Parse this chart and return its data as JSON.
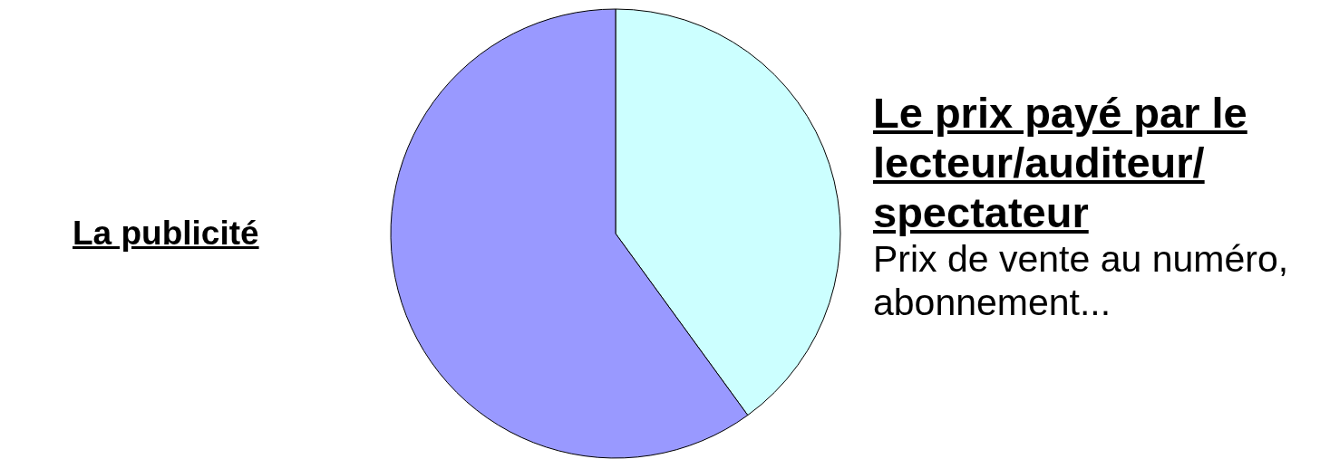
{
  "chart_data": {
    "type": "pie",
    "categories": [
      "Le prix payé par le lecteur/auditeur/ spectateur",
      "La publicité"
    ],
    "values": [
      40,
      60
    ],
    "colors": [
      "#ccffff",
      "#9999ff"
    ],
    "annotations": [
      "Prix de vente au numéro, abonnement..."
    ]
  }
}
